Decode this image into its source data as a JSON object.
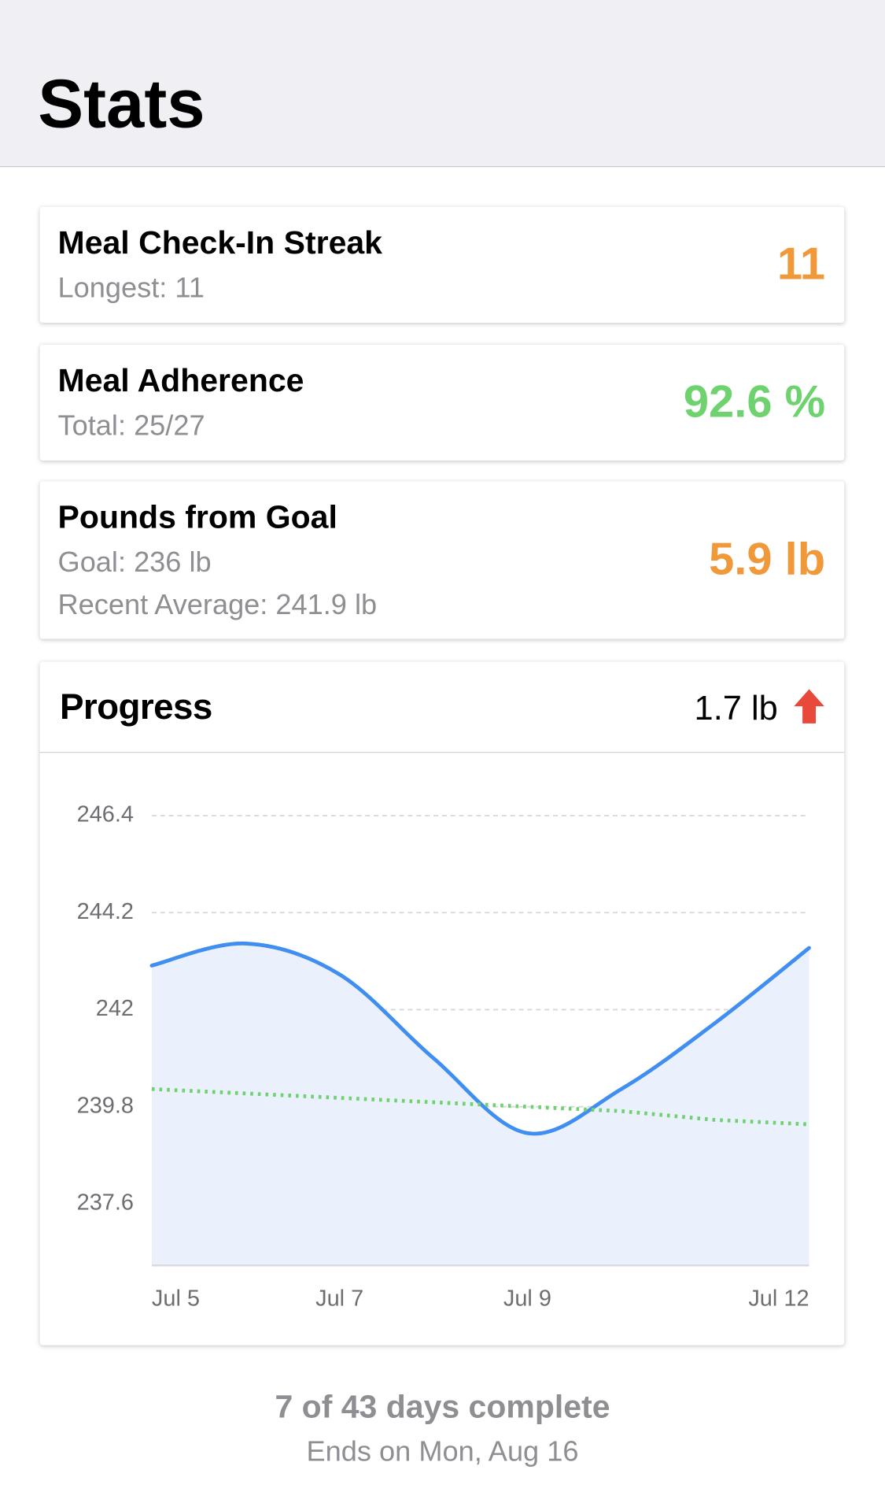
{
  "header": {
    "title": "Stats"
  },
  "cards": [
    {
      "title": "Meal Check-In Streak",
      "details": [
        "Longest: 11"
      ],
      "value": "11",
      "value_color": "#f0993b"
    },
    {
      "title": "Meal Adherence",
      "details": [
        "Total: 25/27"
      ],
      "value": "92.6 %",
      "value_color": "#6ed26f"
    },
    {
      "title": "Pounds from Goal",
      "details": [
        "Goal: 236 lb",
        "Recent Average: 241.9 lb"
      ],
      "value": "5.9 lb",
      "value_color": "#f0993b"
    }
  ],
  "progress": {
    "title": "Progress",
    "change": "1.7 lb"
  },
  "chart_data": {
    "type": "line",
    "categories": [
      "Jul 5",
      null,
      "Jul 7",
      null,
      "Jul 9",
      null,
      null,
      "Jul 12"
    ],
    "series": [
      {
        "color": "#3f8ef0",
        "values": [
          243.0,
          243.5,
          242.8,
          240.9,
          239.2,
          240.2,
          241.7,
          243.4
        ],
        "area_color": "#eaf1fd"
      },
      {
        "color": "#6ed26f",
        "values": [
          240.2,
          240.1,
          240.0,
          239.9,
          239.8,
          239.7,
          239.5,
          239.4
        ],
        "dotted": true
      }
    ],
    "ylim": [
      236.2,
      247.2
    ],
    "yticks": [
      237.6,
      239.8,
      242,
      244.2,
      246.4
    ],
    "grid": true
  },
  "footer": {
    "status": "7 of 43 days complete",
    "end": "Ends on Mon, Aug 16"
  }
}
